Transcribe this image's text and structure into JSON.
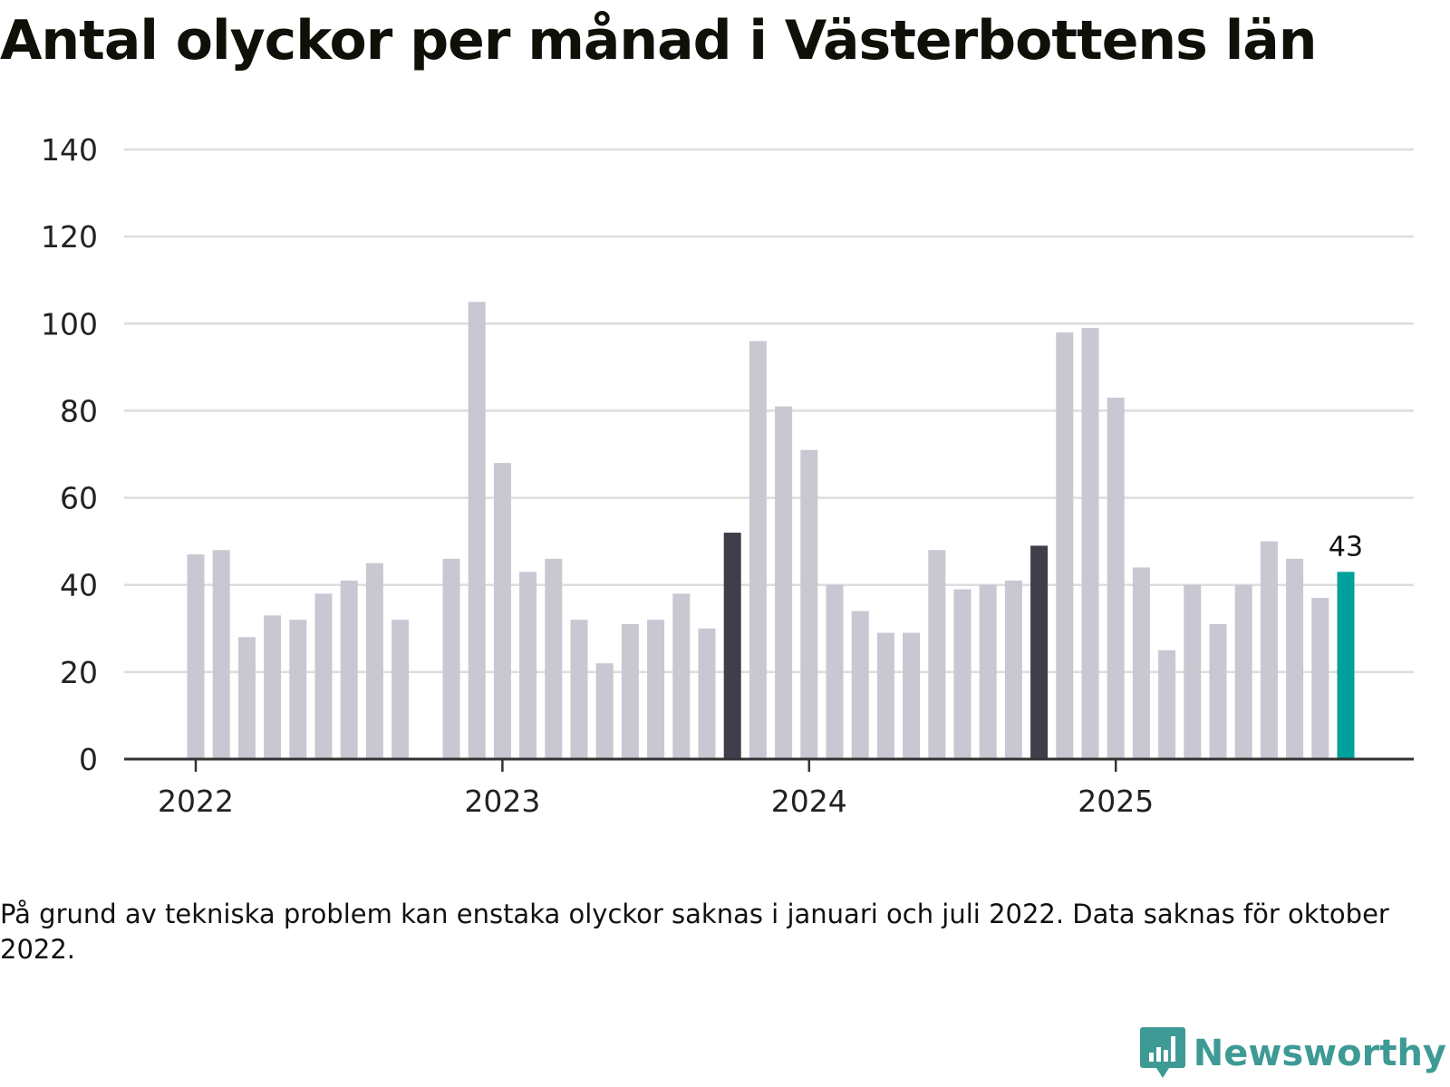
{
  "title": "Antal olyckor per månad i Västerbottens län",
  "note": "På grund av tekniska problem kan enstaka olyckor saknas i januari och juli 2022. Data saknas för oktober 2022.",
  "brand": {
    "name": "Newsworthy",
    "icon": "newsworthy-logo-icon",
    "color": "#3e9a95"
  },
  "colors": {
    "default": "#c8c7d2",
    "october": "#3f3e4b",
    "latest": "#00a19a",
    "grid": "#dddddd",
    "axis": "#333333"
  },
  "chart_data": {
    "type": "bar",
    "title": "Antal olyckor per månad i Västerbottens län",
    "xlabel": "",
    "ylabel": "",
    "ylim": [
      0,
      140
    ],
    "yticks": [
      0,
      20,
      40,
      60,
      80,
      100,
      120,
      140
    ],
    "xticks": [
      {
        "label": "2022",
        "index": 0
      },
      {
        "label": "2023",
        "index": 12
      },
      {
        "label": "2024",
        "index": 24
      },
      {
        "label": "2025",
        "index": 36
      }
    ],
    "start": "2022-01",
    "values": [
      47,
      48,
      28,
      33,
      32,
      38,
      41,
      45,
      32,
      null,
      46,
      105,
      68,
      43,
      46,
      32,
      22,
      31,
      32,
      38,
      30,
      52,
      96,
      81,
      71,
      40,
      34,
      29,
      29,
      48,
      39,
      40,
      41,
      49,
      98,
      99,
      83,
      44,
      25,
      40,
      31,
      40,
      50,
      46,
      37,
      43
    ],
    "highlight_indices": [
      21,
      33
    ],
    "latest_index": 45,
    "latest_label": "43",
    "grid": true
  }
}
